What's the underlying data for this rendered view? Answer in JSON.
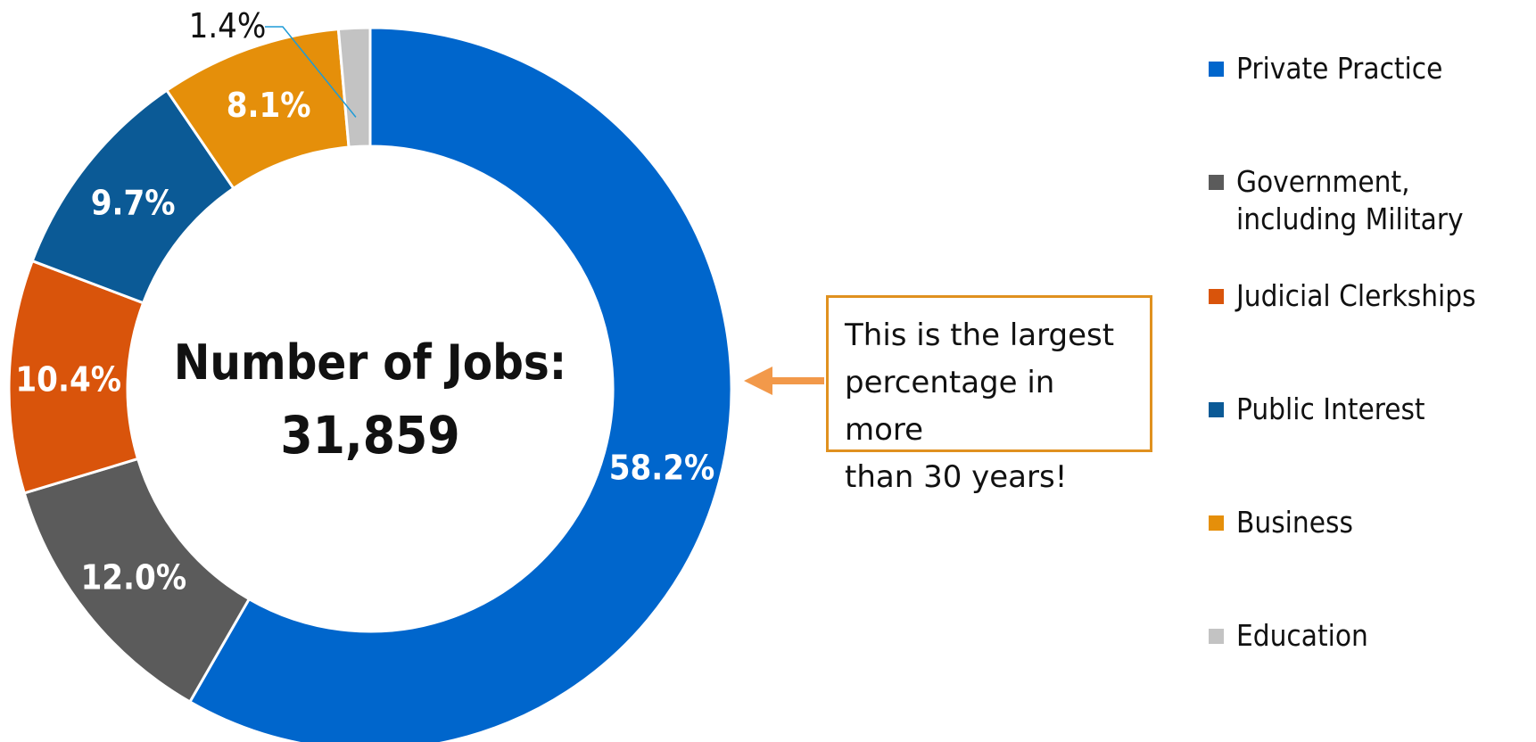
{
  "chart_data": {
    "type": "pie",
    "center_label": "Number of Jobs:",
    "center_value": "31,859",
    "slices": [
      {
        "name": "Private Practice",
        "value": 58.2,
        "label": "58.2%",
        "color": "#0066CC"
      },
      {
        "name": "Government, including Military",
        "value": 12.0,
        "label": "12.0%",
        "color": "#5B5B5B"
      },
      {
        "name": "Judicial Clerkships",
        "value": 10.4,
        "label": "10.4%",
        "color": "#D9540B"
      },
      {
        "name": "Public Interest",
        "value": 9.7,
        "label": "9.7%",
        "color": "#0B5A96"
      },
      {
        "name": "Business",
        "value": 8.1,
        "label": "8.1%",
        "color": "#E58F0A"
      },
      {
        "name": "Education",
        "value": 1.4,
        "label": "1.4%",
        "color": "#C3C3C3"
      }
    ],
    "annotation": "This is the largest\npercentage in more\nthan 30 years!",
    "annotation_color": "#F2994A",
    "legend_position": "right"
  }
}
